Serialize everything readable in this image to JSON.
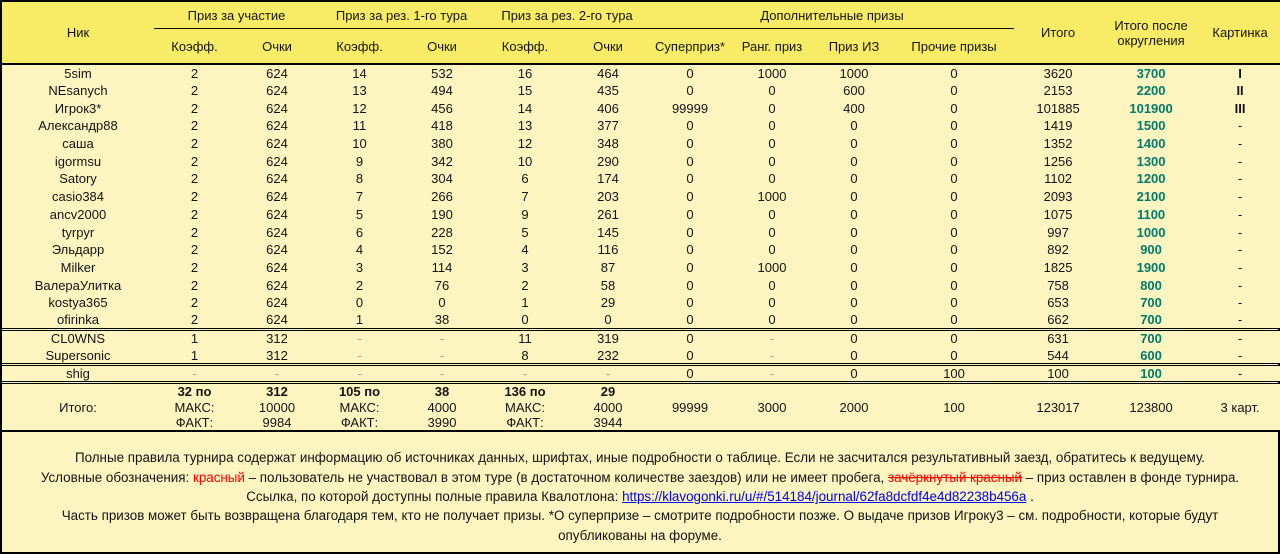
{
  "colors": {
    "header_bg": "#f8eb66",
    "body_bg": "#fcf5c0",
    "medal_bg": "#f2a127",
    "rounded_text": "#007a6a",
    "missed_text": "#ec8585",
    "legend_red": "#ff0000",
    "link_blue": "#0000ee"
  },
  "table": {
    "header": {
      "nick": "Ник",
      "groups": [
        {
          "label": "Приз за участие",
          "cols": [
            "Коэфф.",
            "Очки"
          ]
        },
        {
          "label": "Приз за рез. 1-го тура",
          "cols": [
            "Коэфф.",
            "Очки"
          ]
        },
        {
          "label": "Приз за рез. 2-го тура",
          "cols": [
            "Коэфф.",
            "Очки"
          ]
        },
        {
          "label": "Дополнительные призы",
          "cols": [
            "Суперприз*",
            "Ранг. приз",
            "Приз ИЗ",
            "Прочие призы"
          ]
        }
      ],
      "total": "Итого",
      "rounded": "Итого после округления",
      "picture": "Картинка"
    },
    "col_keys": [
      "coef-participation",
      "pts-participation",
      "coef-tour1",
      "pts-tour1",
      "coef-tour2",
      "pts-tour2",
      "superprize",
      "rank-prize",
      "iz-prize",
      "other-prizes",
      "total",
      "rounded",
      "picture"
    ],
    "rows": [
      {
        "name": "5sim",
        "cells": [
          "2",
          "624",
          "14",
          "532",
          "16",
          "464",
          "0",
          "1000",
          "1000",
          "0",
          "3620",
          "3700",
          {
            "v": "I",
            "c": "orange"
          }
        ]
      },
      {
        "name": "NEsanych",
        "cells": [
          "2",
          "624",
          "13",
          "494",
          "15",
          "435",
          "0",
          "0",
          "600",
          "0",
          "2153",
          "2200",
          {
            "v": "II",
            "c": "orange"
          }
        ]
      },
      {
        "name": "Игрок3*",
        "cells": [
          "2",
          "624",
          "12",
          "456",
          "14",
          "406",
          "99999",
          "0",
          "400",
          "0",
          "101885",
          "101900",
          {
            "v": "III",
            "c": "orange"
          }
        ]
      },
      {
        "name": "Александр88",
        "cells": [
          "2",
          "624",
          "11",
          "418",
          "13",
          "377",
          "0",
          "0",
          "0",
          "0",
          "1419",
          "1500",
          "-"
        ]
      },
      {
        "name": "саша",
        "cells": [
          "2",
          "624",
          "10",
          "380",
          "12",
          "348",
          "0",
          "0",
          "0",
          "0",
          "1352",
          "1400",
          "-"
        ]
      },
      {
        "name": "igormsu",
        "cells": [
          "2",
          "624",
          "9",
          "342",
          "10",
          "290",
          "0",
          "0",
          "0",
          "0",
          "1256",
          "1300",
          "-"
        ]
      },
      {
        "name": "Satory",
        "cells": [
          "2",
          "624",
          "8",
          "304",
          "6",
          "174",
          "0",
          "0",
          "0",
          "0",
          "1102",
          "1200",
          "-"
        ]
      },
      {
        "name": "casio384",
        "cells": [
          "2",
          "624",
          "7",
          "266",
          "7",
          "203",
          "0",
          "1000",
          "0",
          "0",
          "2093",
          "2100",
          "-"
        ]
      },
      {
        "name": "ancv2000",
        "cells": [
          "2",
          "624",
          "5",
          "190",
          "9",
          "261",
          "0",
          "0",
          "0",
          "0",
          "1075",
          "1100",
          "-"
        ]
      },
      {
        "name": "tyrpyr",
        "cells": [
          "2",
          "624",
          "6",
          "228",
          "5",
          "145",
          "0",
          "0",
          "0",
          "0",
          "997",
          "1000",
          "-"
        ]
      },
      {
        "name": "Эльдарр",
        "cells": [
          "2",
          "624",
          "4",
          "152",
          "4",
          "116",
          "0",
          "0",
          "0",
          "0",
          "892",
          "900",
          "-"
        ]
      },
      {
        "name": "Milker",
        "cells": [
          "2",
          "624",
          "3",
          "114",
          "3",
          "87",
          "0",
          "1000",
          "0",
          "0",
          "1825",
          "1900",
          "-"
        ]
      },
      {
        "name": "ВалераУлитка",
        "cells": [
          "2",
          "624",
          "2",
          "76",
          "2",
          "58",
          "0",
          "0",
          "0",
          "0",
          "758",
          "800",
          "-"
        ]
      },
      {
        "name": "kostya365",
        "cells": [
          "2",
          "624",
          "0",
          "0",
          "1",
          "29",
          "0",
          "0",
          "0",
          "0",
          "653",
          "700",
          "-"
        ]
      },
      {
        "name": "ofirinka",
        "cells": [
          "2",
          "624",
          "1",
          "38",
          "0",
          "0",
          "0",
          "0",
          "0",
          "0",
          "662",
          "700",
          "-"
        ]
      },
      {
        "name": "CL0WNS",
        "sep": true,
        "cells": [
          "1",
          "312",
          {
            "v": "-",
            "c": "red"
          },
          {
            "v": "-",
            "c": "red"
          },
          "11",
          "319",
          "0",
          {
            "v": "-",
            "c": "red"
          },
          "0",
          "0",
          "631",
          "700",
          "-"
        ]
      },
      {
        "name": "Supersonic",
        "cells": [
          "1",
          "312",
          {
            "v": "-",
            "c": "red"
          },
          {
            "v": "-",
            "c": "red"
          },
          "8",
          "232",
          "0",
          {
            "v": "-",
            "c": "red"
          },
          "0",
          "0",
          "544",
          "600",
          "-"
        ]
      },
      {
        "name": "shig",
        "sep": true,
        "cells": [
          {
            "v": "-",
            "c": "red"
          },
          {
            "v": "-",
            "c": "red"
          },
          {
            "v": "-",
            "c": "red"
          },
          {
            "v": "-",
            "c": "red"
          },
          {
            "v": "-",
            "c": "red"
          },
          {
            "v": "-",
            "c": "red"
          },
          "0",
          {
            "v": "-",
            "c": "red"
          },
          "0",
          "100",
          "100",
          "100",
          "-"
        ]
      }
    ],
    "totals": {
      "label": "Итого:",
      "participation": {
        "line1_label": "32 по",
        "line1_value": "312",
        "max_label": "МАКС:",
        "max_value": "10000",
        "fact_label": "ФАКТ:",
        "fact_value": "9984"
      },
      "tour1": {
        "line1_label": "105 по",
        "line1_value": "38",
        "max_label": "МАКС:",
        "max_value": "4000",
        "fact_label": "ФАКТ:",
        "fact_value": "3990"
      },
      "tour2": {
        "line1_label": "136 по",
        "line1_value": "29",
        "max_label": "МАКС:",
        "max_value": "4000",
        "fact_label": "ФАКТ:",
        "fact_value": "3944"
      },
      "superprize": "99999",
      "rank": "3000",
      "iz": "2000",
      "other": "100",
      "total": "123017",
      "rounded": "123800",
      "picture": "3 карт."
    }
  },
  "notes": {
    "line1": "Полные правила турнира содержат информацию об источниках данных, шрифтах, иные подробности о таблице. Если не засчитался результативный заезд, обратитесь к ведущему.",
    "legend_prefix": "Условные обозначения: ",
    "legend_red_word": "красный",
    "legend_mid": " – пользователь не участвовал в этом туре (в достаточном количестве заездов) или не имеет пробега, ",
    "legend_struck_word": "зачёркнутый красный",
    "legend_suffix": " – приз оставлен в фонде турнира.",
    "link_prefix": "Ссылка, по которой доступны полные правила Квалотлона: ",
    "link_url": "https://klavogonki.ru/u/#/514184/journal/62fa8dcfdf4e4d82238b456a",
    "link_suffix": " .",
    "line4a": "Часть призов может быть возвращена благодаря тем, кто не получает призы. *О суперпризе – смотрите подробности позже. О выдаче призов Игроку3 – см. подробности, которые будут",
    "line4b": "опубликованы на форуме."
  }
}
